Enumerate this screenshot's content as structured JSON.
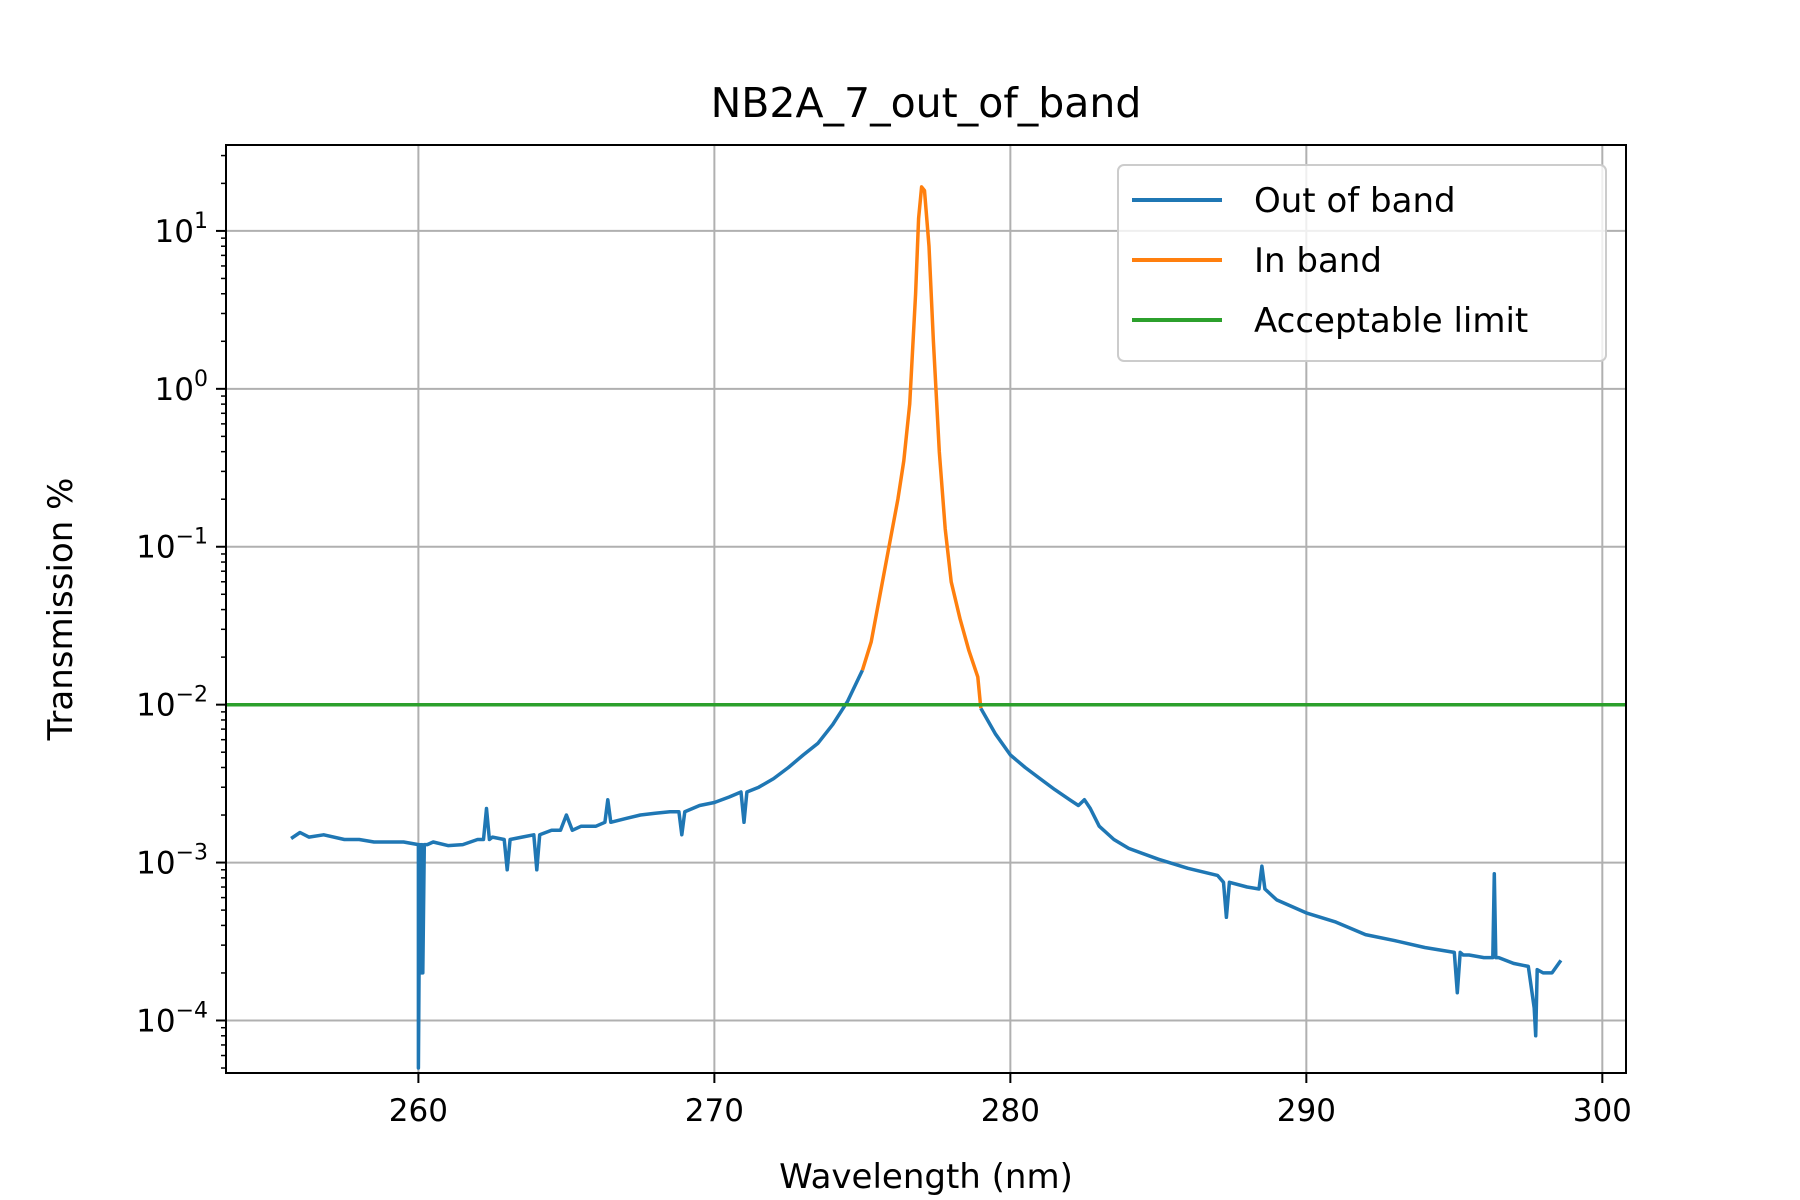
{
  "chart_data": {
    "type": "line",
    "title": "NB2A_7_out_of_band",
    "xlabel": "Wavelength (nm)",
    "ylabel": "Transmission %",
    "yscale": "log",
    "xlim": [
      253.5,
      300.8
    ],
    "ylim": [
      4.65e-05,
      35
    ],
    "x_ticks": [
      260,
      270,
      280,
      290,
      300
    ],
    "y_ticks": [
      {
        "value": 0.0001,
        "base": "10",
        "exp": "−4"
      },
      {
        "value": 0.001,
        "base": "10",
        "exp": "−3"
      },
      {
        "value": 0.01,
        "base": "10",
        "exp": "−2"
      },
      {
        "value": 0.1,
        "base": "10",
        "exp": "−1"
      },
      {
        "value": 1,
        "base": "10",
        "exp": "0"
      },
      {
        "value": 10,
        "base": "10",
        "exp": "1"
      }
    ],
    "grid": true,
    "legend_position": "top-right",
    "series": [
      {
        "name": "Out of band",
        "color": "#1f77b4",
        "segments": [
          {
            "x": [
              255.7,
              256.0,
              256.3,
              256.8,
              257.5,
              258.0,
              258.5,
              259.0,
              259.5,
              260.0,
              260.0,
              260.05,
              260.1,
              260.12,
              260.15,
              260.2,
              260.2,
              260.25,
              260.3,
              260.5,
              261.0,
              261.5,
              262.0,
              262.2,
              262.3,
              262.4,
              262.5,
              262.9,
              263.0,
              263.1,
              263.5,
              263.9,
              264.0,
              264.1,
              264.5,
              264.8,
              265.0,
              265.2,
              265.5,
              266.0,
              266.3,
              266.4,
              266.5,
              267.0,
              267.5,
              268.0,
              268.5,
              268.8,
              268.9,
              269.0,
              269.5,
              270.0,
              270.5,
              270.9,
              271.0,
              271.1,
              271.5,
              272.0,
              272.5,
              273.0,
              273.5,
              274.0,
              274.5,
              275.0
            ],
            "y": [
              0.00142,
              0.00155,
              0.00145,
              0.0015,
              0.0014,
              0.0014,
              0.00135,
              0.00135,
              0.00135,
              0.0013,
              5e-05,
              0.0013,
              0.0002,
              0.0013,
              0.0002,
              0.0013,
              0.0013,
              0.0013,
              0.0013,
              0.00135,
              0.00128,
              0.0013,
              0.0014,
              0.0014,
              0.0022,
              0.0014,
              0.00145,
              0.0014,
              0.0009,
              0.0014,
              0.00145,
              0.0015,
              0.0009,
              0.0015,
              0.0016,
              0.0016,
              0.002,
              0.0016,
              0.0017,
              0.0017,
              0.0018,
              0.0025,
              0.0018,
              0.0019,
              0.002,
              0.00205,
              0.0021,
              0.0021,
              0.0015,
              0.0021,
              0.0023,
              0.0024,
              0.0026,
              0.0028,
              0.0018,
              0.0028,
              0.003,
              0.0034,
              0.004,
              0.0048,
              0.0057,
              0.0075,
              0.0105,
              0.0165
            ]
          },
          {
            "x": [
              279.0,
              279.5,
              280.0,
              280.5,
              281.0,
              281.5,
              282.0,
              282.3,
              282.5,
              282.7,
              283.0,
              283.5,
              284.0,
              285.0,
              286.0,
              287.0,
              287.2,
              287.3,
              287.4,
              288.0,
              288.4,
              288.5,
              288.6,
              289.0,
              290.0,
              291.0,
              292.0,
              293.0,
              294.0,
              295.0,
              295.1,
              295.2,
              295.3,
              295.5,
              296.0,
              296.3,
              296.35,
              296.4,
              296.5,
              297.0,
              297.5,
              297.7,
              297.75,
              297.8,
              298.0,
              298.3,
              298.6
            ],
            "y": [
              0.0095,
              0.0065,
              0.0048,
              0.004,
              0.0034,
              0.0029,
              0.0025,
              0.0023,
              0.0025,
              0.0022,
              0.0017,
              0.0014,
              0.00123,
              0.00105,
              0.00092,
              0.00083,
              0.00075,
              0.00045,
              0.00075,
              0.0007,
              0.00068,
              0.00095,
              0.00068,
              0.00058,
              0.00048,
              0.00042,
              0.00035,
              0.00032,
              0.00029,
              0.00027,
              0.00015,
              0.00027,
              0.00026,
              0.00026,
              0.00025,
              0.00025,
              0.00085,
              0.00025,
              0.00025,
              0.00023,
              0.00022,
              0.00012,
              8e-05,
              0.00021,
              0.0002,
              0.0002,
              0.00024
            ]
          }
        ]
      },
      {
        "name": "In band",
        "color": "#ff7f0e",
        "segments": [
          {
            "x": [
              275.0,
              275.3,
              275.6,
              275.9,
              276.2,
              276.4,
              276.6,
              276.8,
              276.9,
              277.0,
              277.1,
              277.25,
              277.4,
              277.6,
              277.8,
              278.0,
              278.3,
              278.6,
              278.9,
              279.0
            ],
            "y": [
              0.0165,
              0.025,
              0.05,
              0.1,
              0.2,
              0.35,
              0.8,
              4,
              12,
              19,
              18,
              8,
              2,
              0.4,
              0.13,
              0.06,
              0.035,
              0.022,
              0.015,
              0.0095
            ]
          }
        ]
      },
      {
        "name": "Acceptable limit",
        "color": "#2ca02c",
        "segments": [
          {
            "x": [
              253.5,
              300.8
            ],
            "y": [
              0.01,
              0.01
            ]
          }
        ]
      }
    ]
  }
}
